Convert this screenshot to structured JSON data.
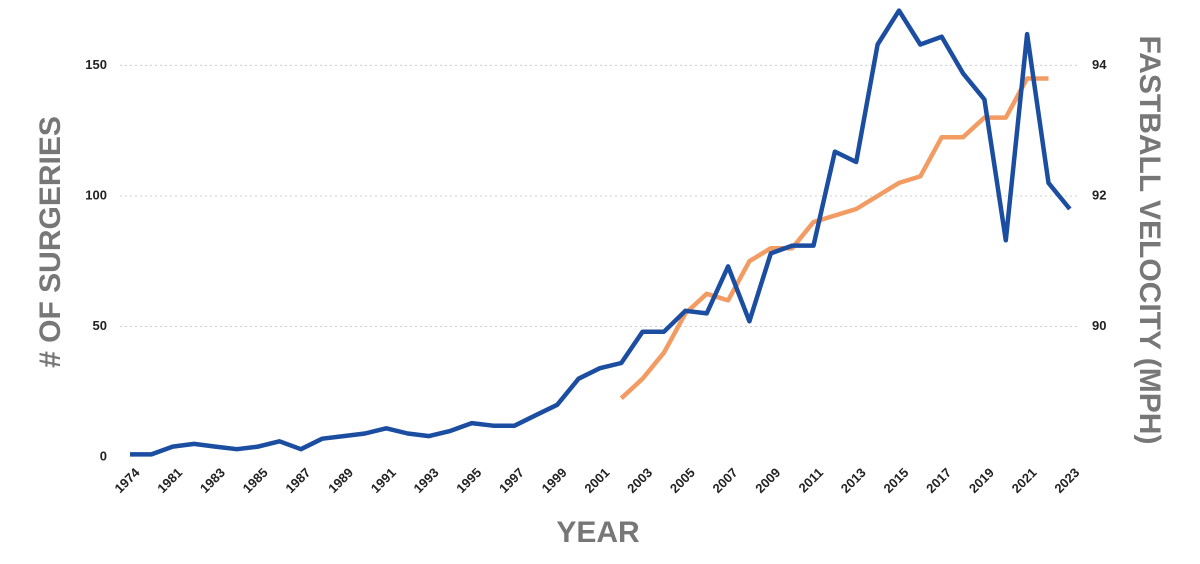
{
  "chart_data": {
    "type": "line",
    "y_label": "# OF SURGERIES",
    "y2_label": "FASTBALL VELOCITY (MPH)",
    "x_label": "YEAR",
    "categories": [
      "1974",
      null,
      "1981",
      null,
      "1983",
      null,
      "1985",
      null,
      "1987",
      null,
      "1989",
      null,
      "1991",
      null,
      "1993",
      null,
      "1995",
      null,
      "1997",
      null,
      "1999",
      null,
      "2001",
      null,
      "2003",
      null,
      "2005",
      null,
      "2007",
      null,
      "2009",
      null,
      "2011",
      null,
      "2013",
      null,
      "2015",
      null,
      "2017",
      null,
      "2019",
      null,
      "2021",
      null,
      "2023"
    ],
    "series": [
      {
        "color": "#1b4ea0",
        "values": [
          1,
          1,
          4,
          5,
          4,
          3,
          4,
          6,
          3,
          7,
          8,
          9,
          11,
          9,
          8,
          10,
          13,
          12,
          12,
          16,
          20,
          30,
          34,
          36,
          48,
          48,
          56,
          55,
          73,
          52,
          78,
          81,
          81,
          117,
          113,
          158,
          171,
          158,
          161,
          147,
          137,
          83,
          162,
          105,
          95
        ]
      },
      {
        "color": "#f29b62",
        "axis": "y2",
        "values": [
          null,
          null,
          null,
          null,
          null,
          null,
          null,
          null,
          null,
          null,
          null,
          null,
          null,
          null,
          null,
          null,
          null,
          null,
          null,
          null,
          null,
          null,
          null,
          88.9,
          89.2,
          89.6,
          90.2,
          90.5,
          90.4,
          91.0,
          91.2,
          91.2,
          91.6,
          91.7,
          91.8,
          92.0,
          92.2,
          92.3,
          92.9,
          92.9,
          93.2,
          93.2,
          93.8,
          93.8,
          null
        ]
      }
    ],
    "ylim": [
      0,
      172
    ],
    "yticks": [
      0,
      50,
      100,
      150
    ],
    "y2lim": [
      88,
      94.88
    ],
    "y2ticks": [
      90,
      92,
      94
    ],
    "grid": true
  }
}
